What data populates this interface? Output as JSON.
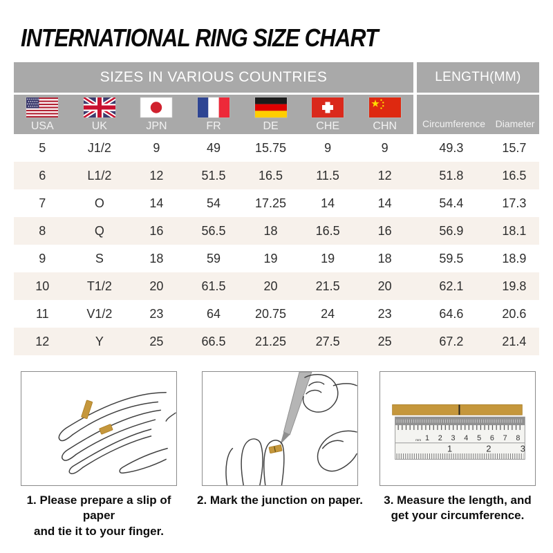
{
  "title": "INTERNATIONAL RING SIZE CHART",
  "table": {
    "group_headers": {
      "sizes": "SIZES IN VARIOUS COUNTRIES",
      "length": "LENGTH(MM)"
    },
    "columns": [
      {
        "code": "USA",
        "flag": "usa-flag"
      },
      {
        "code": "UK",
        "flag": "uk-flag"
      },
      {
        "code": "JPN",
        "flag": "japan-flag"
      },
      {
        "code": "FR",
        "flag": "france-flag"
      },
      {
        "code": "DE",
        "flag": "germany-flag"
      },
      {
        "code": "CHE",
        "flag": "switzerland-flag"
      },
      {
        "code": "CHN",
        "flag": "china-flag"
      }
    ],
    "length_columns": {
      "circumference": "Circumference",
      "diameter": "Diameter"
    },
    "rows": [
      [
        "5",
        "J1/2",
        "9",
        "49",
        "15.75",
        "9",
        "9",
        "49.3",
        "15.7"
      ],
      [
        "6",
        "L1/2",
        "12",
        "51.5",
        "16.5",
        "11.5",
        "12",
        "51.8",
        "16.5"
      ],
      [
        "7",
        "O",
        "14",
        "54",
        "17.25",
        "14",
        "14",
        "54.4",
        "17.3"
      ],
      [
        "8",
        "Q",
        "16",
        "56.5",
        "18",
        "16.5",
        "16",
        "56.9",
        "18.1"
      ],
      [
        "9",
        "S",
        "18",
        "59",
        "19",
        "19",
        "18",
        "59.5",
        "18.9"
      ],
      [
        "10",
        "T1/2",
        "20",
        "61.5",
        "20",
        "21.5",
        "20",
        "62.1",
        "19.8"
      ],
      [
        "11",
        "V1/2",
        "23",
        "64",
        "20.75",
        "24",
        "23",
        "64.6",
        "20.6"
      ],
      [
        "12",
        "Y",
        "25",
        "66.5",
        "21.25",
        "27.5",
        "25",
        "67.2",
        "21.4"
      ]
    ]
  },
  "instructions": [
    {
      "caption_lines": [
        "1. Please prepare a slip of paper",
        "and tie it to your finger."
      ]
    },
    {
      "caption_lines": [
        "2. Mark the junction on paper."
      ]
    },
    {
      "caption_lines": [
        "3. Measure the length, and",
        "get your circumference."
      ]
    }
  ],
  "ruler": {
    "unit_label": "mm",
    "cm_numbers": [
      "1",
      "2",
      "3",
      "4",
      "5",
      "6",
      "7",
      "8"
    ],
    "inch_numbers": [
      "1",
      "2",
      "3"
    ]
  },
  "colors": {
    "header_gray": "#a9a9a9",
    "row_alt_beige": "#f7f1eb",
    "paper_gold": "#c5973c"
  }
}
